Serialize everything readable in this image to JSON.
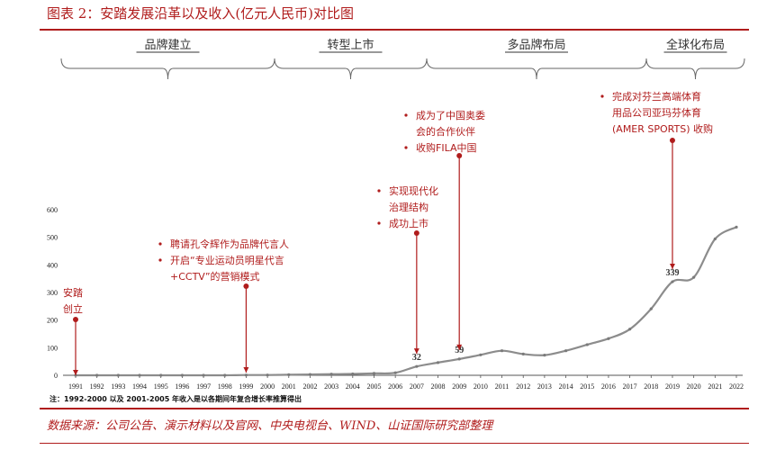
{
  "figure_title": "图表 2：安踏发展沿革以及收入(亿元人民币)对比图",
  "source": "数据来源：公司公告、演示材料以及官网、中央电视台、WIND、山证国际研究部整理",
  "note": "注：1992-2000 以及 2001-2005 年收入是以各期间年复合增长率推算得出",
  "phases": [
    "品牌建立",
    "转型上市",
    "多品牌布局",
    "全球化布局"
  ],
  "annotations": [
    {
      "lines": [
        "安踏",
        "创立"
      ],
      "bullets": false
    },
    {
      "lines": [
        "聘请孔令辉作为品牌代言人",
        "开启“专业运动员明星代言",
        "+CCTV”的营销模式"
      ],
      "bullets": true
    },
    {
      "lines": [
        "实现现代化",
        "治理结构",
        "成功上市"
      ],
      "bullets": true
    },
    {
      "lines": [
        "成为了中国奥委",
        "会的合作伙伴",
        "收购FILA中国"
      ],
      "bullets": true
    },
    {
      "lines": [
        "完成对芬兰高端体育",
        "用品公司亚玛芬体育",
        "(AMER SPORTS) 收购"
      ],
      "bullets": true
    }
  ],
  "colors": {
    "accent": "#b01c1c",
    "line": "#8c8c8c",
    "text": "#333333"
  },
  "chart_data": {
    "type": "line",
    "x": [
      1991,
      1992,
      1993,
      1994,
      1995,
      1996,
      1997,
      1998,
      1999,
      2000,
      2001,
      2002,
      2003,
      2004,
      2005,
      2006,
      2007,
      2008,
      2009,
      2010,
      2011,
      2012,
      2013,
      2014,
      2015,
      2016,
      2017,
      2018,
      2019,
      2020,
      2021,
      2022
    ],
    "values": [
      0,
      0,
      0,
      0,
      0,
      0,
      0,
      0,
      1,
      1,
      2,
      3,
      4,
      5,
      7,
      9,
      32,
      46,
      59,
      74,
      89,
      77,
      73,
      89,
      111,
      133,
      167,
      241,
      339,
      355,
      494,
      537
    ],
    "data_labels": [
      {
        "x": 2007,
        "value": "32"
      },
      {
        "x": 2009,
        "value": "59"
      },
      {
        "x": 2019,
        "value": "339"
      }
    ],
    "y_ticks": [
      "0",
      "100",
      "200",
      "300",
      "400",
      "500",
      "600"
    ],
    "ylim": [
      0,
      600
    ],
    "x_tick_labels": [
      "1991",
      "1992",
      "1993",
      "1994",
      "1995",
      "1996",
      "1997",
      "1998",
      "1999",
      "2000",
      "2001",
      "2002",
      "2003",
      "2004",
      "2005",
      "2006",
      "2007",
      "2008",
      "2009",
      "2010",
      "2011",
      "2012",
      "2013",
      "2014",
      "2015",
      "2016",
      "2017",
      "2018",
      "2019",
      "2020",
      "2021",
      "2022"
    ],
    "grid": false
  }
}
